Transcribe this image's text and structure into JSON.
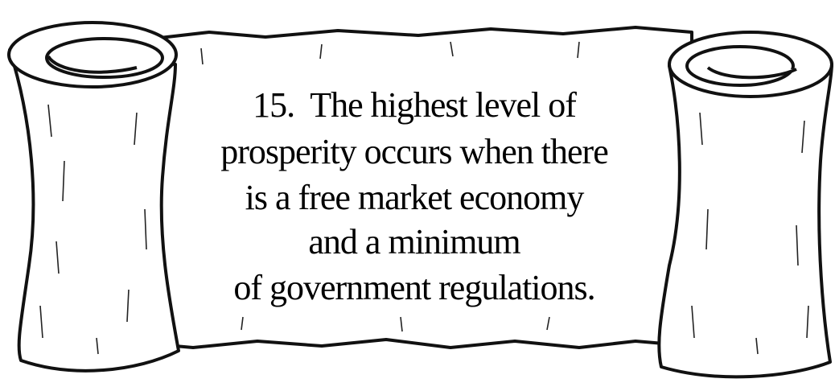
{
  "scroll": {
    "lines": [
      "15.  The highest level of",
      "prosperity occurs when there",
      "is a free market economy",
      "and a minimum",
      "of government regulations."
    ]
  }
}
